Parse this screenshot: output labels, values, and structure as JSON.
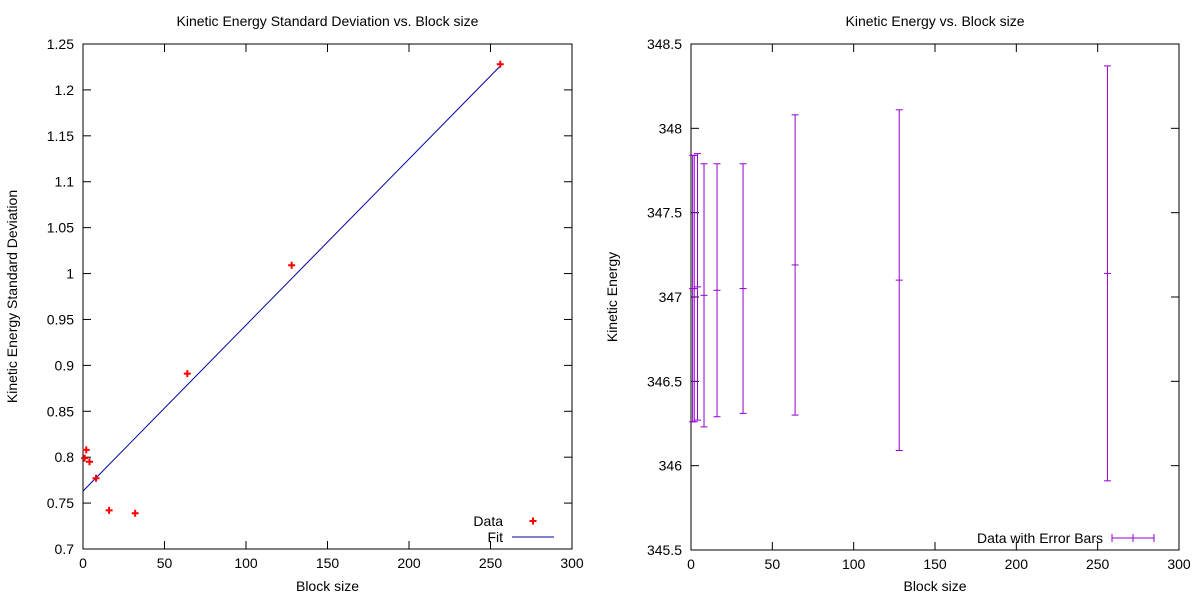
{
  "chart_data": [
    {
      "type": "scatter",
      "title": "Kinetic Energy Standard Deviation vs. Block size",
      "xlabel": "Block size",
      "ylabel": "Kinetic Energy Standard Deviation",
      "xlim": [
        0,
        300
      ],
      "ylim": [
        0.7,
        1.25
      ],
      "xticks": [
        "0",
        "50",
        "100",
        "150",
        "200",
        "250",
        "300"
      ],
      "yticks": [
        "0.7",
        "0.75",
        "0.8",
        "0.85",
        "0.9",
        "0.95",
        "1",
        "1.05",
        "1.1",
        "1.15",
        "1.2",
        "1.25"
      ],
      "grid": false,
      "legend": "bottom-right",
      "series": [
        {
          "name": "Data",
          "kind": "points",
          "color": "#ff0000",
          "marker": "+",
          "x": [
            1,
            2,
            4,
            8,
            16,
            32,
            64,
            128,
            256
          ],
          "y": [
            0.799,
            0.808,
            0.795,
            0.777,
            0.742,
            0.739,
            0.891,
            1.009,
            1.228
          ]
        },
        {
          "name": "Fit",
          "kind": "line",
          "color": "#0000a0",
          "x": [
            0,
            256
          ],
          "y": [
            0.763,
            1.226
          ]
        }
      ]
    },
    {
      "type": "errorbar",
      "title": "Kinetic Energy vs. Block size",
      "xlabel": "Block size",
      "ylabel": "Kinetic Energy",
      "xlim": [
        0,
        300
      ],
      "ylim": [
        345.5,
        348.5
      ],
      "xticks": [
        "0",
        "50",
        "100",
        "150",
        "200",
        "250",
        "300"
      ],
      "yticks": [
        "345.5",
        "346",
        "346.5",
        "347",
        "347.5",
        "348",
        "348.5"
      ],
      "grid": false,
      "legend": "bottom-right",
      "series": [
        {
          "name": "Data with Error Bars",
          "color": "#9400d3",
          "x": [
            1,
            2,
            4,
            8,
            16,
            32,
            64,
            128,
            256
          ],
          "y": [
            347.05,
            347.05,
            347.06,
            347.01,
            347.04,
            347.05,
            347.19,
            347.1,
            347.14
          ],
          "err": [
            0.79,
            0.79,
            0.79,
            0.78,
            0.75,
            0.74,
            0.89,
            1.01,
            1.23
          ]
        }
      ]
    }
  ]
}
